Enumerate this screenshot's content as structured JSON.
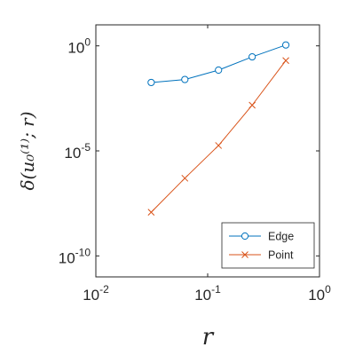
{
  "chart_data": {
    "type": "line",
    "xscale": "log",
    "yscale": "log",
    "xlim": [
      0.01,
      1
    ],
    "ylim": [
      1e-11,
      10
    ],
    "xticks": [
      {
        "value": 0.01,
        "base": "10",
        "exp": "-2"
      },
      {
        "value": 0.1,
        "base": "10",
        "exp": "-1"
      },
      {
        "value": 1,
        "base": "10",
        "exp": "0"
      }
    ],
    "yticks": [
      {
        "value": 1,
        "base": "10",
        "exp": "0"
      },
      {
        "value": 1e-05,
        "base": "10",
        "exp": "-5"
      },
      {
        "value": 1e-10,
        "base": "10",
        "exp": "-10"
      }
    ],
    "xlabel": "r",
    "ylabel": "δ(u₀⁽¹⁾; r)",
    "grid": false,
    "legend_position": "bottom-right",
    "series": [
      {
        "name": "Edge",
        "color": "#0072BD",
        "marker": "circle",
        "x": [
          0.03125,
          0.0625,
          0.125,
          0.25,
          0.5
        ],
        "y": [
          0.018,
          0.025,
          0.07,
          0.3,
          1.1
        ]
      },
      {
        "name": "Point",
        "color": "#D95319",
        "marker": "x",
        "x": [
          0.03125,
          0.0625,
          0.125,
          0.25,
          0.5
        ],
        "y": [
          1.2e-08,
          5e-07,
          1.8e-05,
          0.0015,
          0.2
        ]
      }
    ]
  }
}
